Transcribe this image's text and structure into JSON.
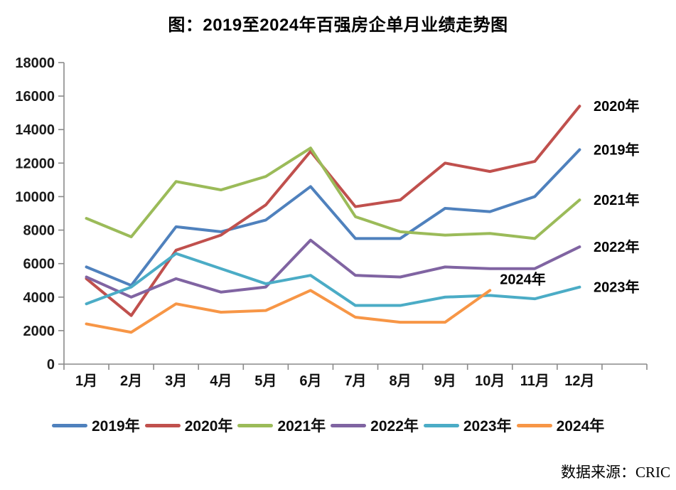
{
  "title": "图：2019至2024年百强房企单月业绩走势图",
  "source": "数据来源：CRIC",
  "chart_data": {
    "type": "line",
    "title": "图：2019至2024年百强房企单月业绩走势图",
    "categories": [
      "1月",
      "2月",
      "3月",
      "4月",
      "5月",
      "6月",
      "7月",
      "8月",
      "9月",
      "10月",
      "11月",
      "12月"
    ],
    "series": [
      {
        "name": "2019年",
        "color": "#4F81BD",
        "values": [
          5800,
          4700,
          8200,
          7900,
          8600,
          10600,
          7500,
          7500,
          9300,
          9100,
          10000,
          12800
        ]
      },
      {
        "name": "2020年",
        "color": "#C0504D",
        "values": [
          5100,
          2900,
          6800,
          7700,
          9500,
          12700,
          9400,
          9800,
          12000,
          11500,
          12100,
          15400
        ]
      },
      {
        "name": "2021年",
        "color": "#9BBB59",
        "values": [
          8700,
          7600,
          10900,
          10400,
          11200,
          12900,
          8800,
          7900,
          7700,
          7800,
          7500,
          9800
        ]
      },
      {
        "name": "2022年",
        "color": "#8064A2",
        "values": [
          5200,
          4000,
          5100,
          4300,
          4600,
          7400,
          5300,
          5200,
          5800,
          5700,
          5700,
          7000
        ]
      },
      {
        "name": "2023年",
        "color": "#4BACC6",
        "values": [
          3600,
          4600,
          6600,
          5700,
          4800,
          5300,
          3500,
          3500,
          4000,
          4100,
          3900,
          4600
        ]
      },
      {
        "name": "2024年",
        "color": "#F79646",
        "values": [
          2400,
          1900,
          3600,
          3100,
          3200,
          4400,
          2800,
          2500,
          2500,
          4400
        ]
      }
    ],
    "xlabel": "",
    "ylabel": "",
    "ylim": [
      0,
      18000
    ],
    "ytick_step": 2000,
    "grid": false,
    "legend_position": "bottom",
    "end_labels_right": [
      "2020年",
      "2019年",
      "2021年",
      "2022年",
      "2023年"
    ],
    "inline_label": "2024年"
  }
}
